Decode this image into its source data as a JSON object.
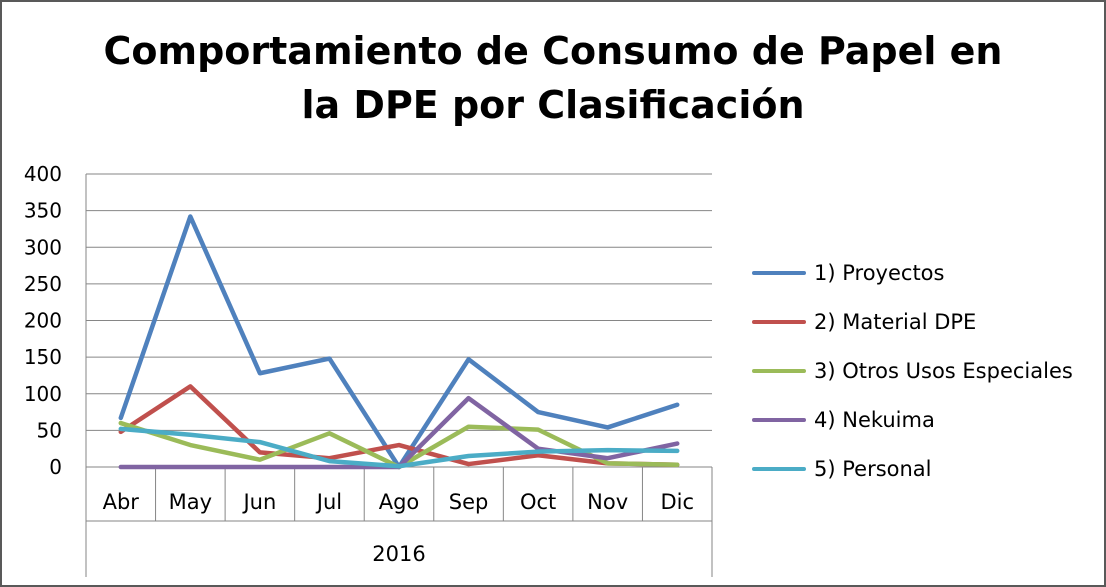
{
  "chart_data": {
    "type": "line",
    "title_lines": [
      "Comportamiento de Consumo de Papel en",
      "la DPE por Clasificación"
    ],
    "categories": [
      "Abr",
      "May",
      "Jun",
      "Jul",
      "Ago",
      "Sep",
      "Oct",
      "Nov",
      "Dic"
    ],
    "group_label": "2016",
    "ylim": [
      0,
      400
    ],
    "yticks": [
      0,
      50,
      100,
      150,
      200,
      250,
      300,
      350,
      400
    ],
    "grid": true,
    "legend_position": "right",
    "series": [
      {
        "name": "1) Proyectos",
        "color": "#4f81bd",
        "values": [
          67,
          342,
          128,
          148,
          0,
          147,
          75,
          54,
          85
        ]
      },
      {
        "name": "2) Material DPE",
        "color": "#c0504d",
        "values": [
          48,
          110,
          20,
          12,
          30,
          4,
          16,
          5,
          3
        ]
      },
      {
        "name": "3) Otros Usos Especiales",
        "color": "#9bbb59",
        "values": [
          60,
          30,
          10,
          46,
          0,
          55,
          51,
          5,
          3
        ]
      },
      {
        "name": "4) Nekuima",
        "color": "#8064a2",
        "values": [
          0,
          0,
          0,
          0,
          0,
          94,
          25,
          12,
          32
        ]
      },
      {
        "name": "5) Personal",
        "color": "#4bacc6",
        "values": [
          52,
          44,
          34,
          8,
          1,
          15,
          21,
          23,
          22
        ]
      }
    ]
  }
}
